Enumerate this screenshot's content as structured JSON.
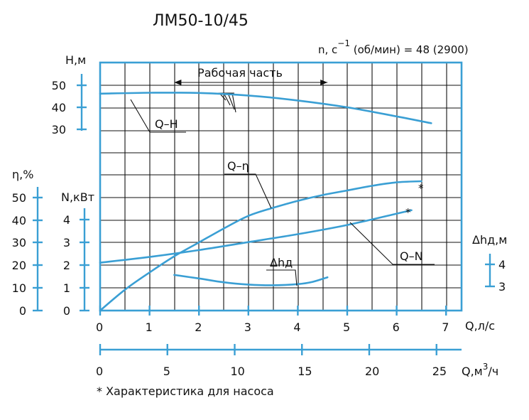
{
  "chart_data": {
    "type": "line",
    "title": "ЛМ50-10/45",
    "speed_label": "n, c",
    "speed_exp": "−1",
    "speed_value": " (об/мин) = 48 (2900)",
    "working_range_label": "Рабочая часть",
    "working_range_q": [
      1.5,
      4.6
    ],
    "xlabel": "Q,л/с",
    "xlim": [
      0,
      7
    ],
    "x_ticks": [
      "0",
      "1",
      "2",
      "3",
      "4",
      "5",
      "6",
      "7"
    ],
    "x2_label_main": "Q,м",
    "x2_label_exp": "3",
    "x2_label_tail": "/ч",
    "x2_ticks": [
      "0",
      "5",
      "10",
      "15",
      "20",
      "25"
    ],
    "axes": {
      "H": {
        "label": "H,м",
        "ticks": [
          "50",
          "40",
          "30"
        ]
      },
      "eta": {
        "label": "η,%",
        "ticks": [
          "50",
          "40",
          "30",
          "20",
          "10",
          "0"
        ]
      },
      "N": {
        "label": "N,кВт",
        "ticks": [
          "4",
          "3",
          "2",
          "1",
          "0"
        ]
      },
      "npsh": {
        "label": "Δhд,м",
        "ticks": [
          "4",
          "3"
        ]
      }
    },
    "curve_labels": {
      "QH": "Q–H",
      "Qeta": "Q–η",
      "QN": "Q–N",
      "npsh": "Δhд"
    },
    "series": [
      {
        "name": "Q–H",
        "x": [
          0,
          1,
          2,
          3,
          4,
          5,
          6,
          6.7
        ],
        "y": [
          46,
          46.4,
          46.3,
          45.2,
          43,
          40,
          36,
          33
        ]
      },
      {
        "name": "Q–η",
        "x": [
          0,
          0.5,
          1,
          1.5,
          2,
          2.5,
          3,
          3.5,
          4,
          4.5,
          5,
          5.5,
          6,
          6.5
        ],
        "y": [
          0,
          9,
          16.5,
          23.5,
          29.5,
          35.5,
          41,
          44.5,
          47.5,
          50,
          52,
          54,
          55.5,
          56
        ]
      },
      {
        "name": "Q–N",
        "x": [
          0,
          1,
          2,
          3,
          4,
          5,
          6,
          6.3
        ],
        "y": [
          2.1,
          2.35,
          2.65,
          3.0,
          3.35,
          3.75,
          4.25,
          4.4
        ]
      },
      {
        "name": "Δhд",
        "x": [
          1.5,
          2,
          2.5,
          3,
          3.5,
          4,
          4.3,
          4.6
        ],
        "y": [
          3.5,
          3.35,
          3.18,
          3.08,
          3.05,
          3.1,
          3.2,
          3.4
        ]
      }
    ],
    "pump_marker": "*",
    "footnote": "* Характеристика для насоса",
    "grid": true,
    "colors": {
      "curve": "#3a9fd4",
      "grid": "#111111"
    }
  }
}
